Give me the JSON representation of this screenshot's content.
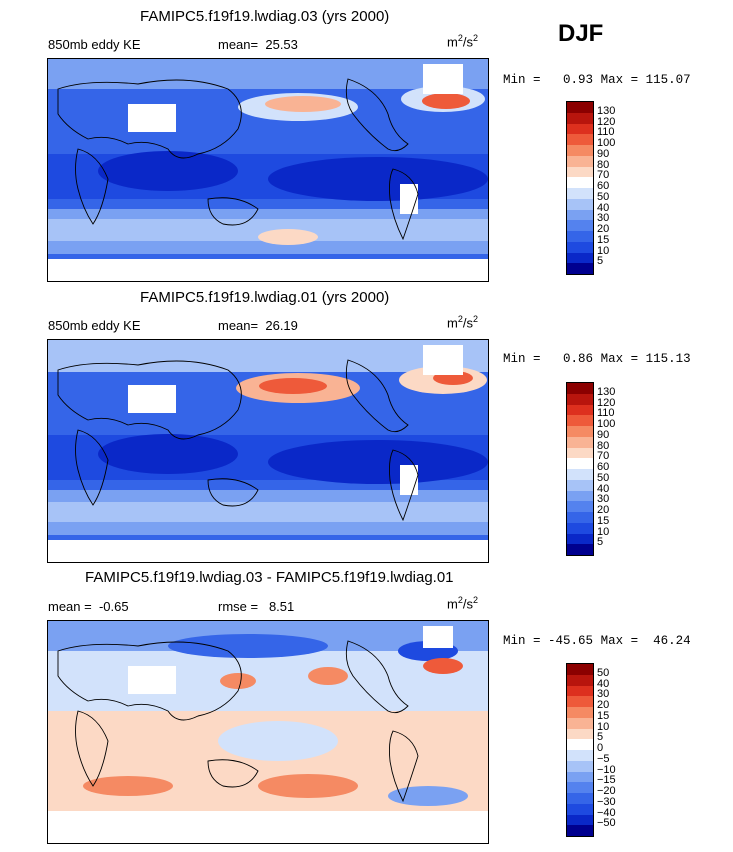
{
  "season": "DJF",
  "units_base": "m",
  "units_exp1": "2",
  "units_mid": "/s",
  "units_exp2": "2",
  "panel1": {
    "title": "FAMIPC5.f19f19.lwdiag.03 (yrs 2000)",
    "variable": "850mb eddy KE",
    "mean_label": "mean=",
    "mean_value": "25.53",
    "min_label": "Min =",
    "min_value": "0.93",
    "max_label": "Max =",
    "max_value": "115.07"
  },
  "panel2": {
    "title": "FAMIPC5.f19f19.lwdiag.01 (yrs 2000)",
    "variable": "850mb eddy KE",
    "mean_label": "mean=",
    "mean_value": "26.19",
    "min_label": "Min =",
    "min_value": "0.86",
    "max_label": "Max =",
    "max_value": "115.13"
  },
  "panel3": {
    "title": "FAMIPC5.f19f19.lwdiag.03 - FAMIPC5.f19f19.lwdiag.01",
    "mean_label": "mean =",
    "mean_value": "-0.65",
    "rmse_label": "rmse =",
    "rmse_value": "8.51",
    "min_label": "Min =",
    "min_value": "-45.65",
    "max_label": "Max =",
    "max_value": "46.24"
  },
  "chart_data": [
    {
      "type": "heatmap",
      "title": "FAMIPC5.f19f19.lwdiag.03 (yrs 2000)",
      "variable": "850mb eddy KE",
      "units": "m^2/s^2",
      "mean": 25.53,
      "min": 0.93,
      "max": 115.07,
      "colorbar_levels": [
        5,
        10,
        15,
        20,
        30,
        40,
        50,
        60,
        70,
        80,
        90,
        100,
        110,
        120,
        130
      ],
      "colorbar_colors": [
        "#00008f",
        "#0a28c8",
        "#1e4ae0",
        "#3565e8",
        "#5482ee",
        "#7aa1f2",
        "#a7c3f7",
        "#d2e2fb",
        "#ffffff",
        "#fcd9c5",
        "#f9b394",
        "#f58a63",
        "#ee5a3a",
        "#dd301e",
        "#b8150d",
        "#8b0000"
      ]
    },
    {
      "type": "heatmap",
      "title": "FAMIPC5.f19f19.lwdiag.01 (yrs 2000)",
      "variable": "850mb eddy KE",
      "units": "m^2/s^2",
      "mean": 26.19,
      "min": 0.86,
      "max": 115.13,
      "colorbar_levels": [
        5,
        10,
        15,
        20,
        30,
        40,
        50,
        60,
        70,
        80,
        90,
        100,
        110,
        120,
        130
      ],
      "colorbar_colors": [
        "#00008f",
        "#0a28c8",
        "#1e4ae0",
        "#3565e8",
        "#5482ee",
        "#7aa1f2",
        "#a7c3f7",
        "#d2e2fb",
        "#ffffff",
        "#fcd9c5",
        "#f9b394",
        "#f58a63",
        "#ee5a3a",
        "#dd301e",
        "#b8150d",
        "#8b0000"
      ]
    },
    {
      "type": "heatmap",
      "title": "FAMIPC5.f19f19.lwdiag.03 - FAMIPC5.f19f19.lwdiag.01",
      "units": "m^2/s^2",
      "mean": -0.65,
      "rmse": 8.51,
      "min": -45.65,
      "max": 46.24,
      "colorbar_levels": [
        -50,
        -40,
        -30,
        -20,
        -15,
        -10,
        -5,
        0,
        5,
        10,
        15,
        20,
        30,
        40,
        50
      ],
      "colorbar_colors": [
        "#00008f",
        "#0a28c8",
        "#1e4ae0",
        "#3565e8",
        "#5482ee",
        "#7aa1f2",
        "#a7c3f7",
        "#d2e2fb",
        "#ffffff",
        "#fcd9c5",
        "#f9b394",
        "#f58a63",
        "#ee5a3a",
        "#dd301e",
        "#b8150d",
        "#8b0000"
      ]
    }
  ]
}
